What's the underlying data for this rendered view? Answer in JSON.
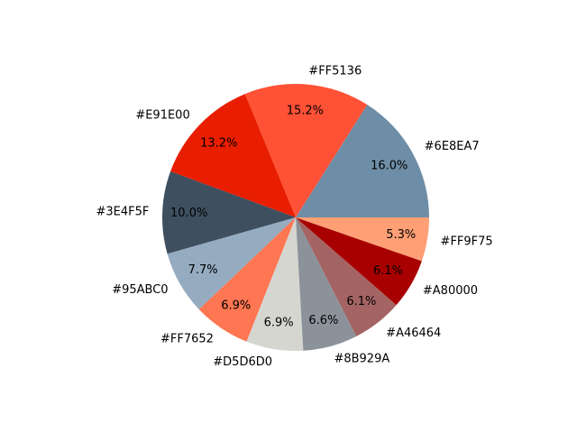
{
  "chart_data": {
    "type": "pie",
    "title": "",
    "labels": [
      "#6E8EA7",
      "#FF5136",
      "#E91E00",
      "#3E4F5F",
      "#95ABC0",
      "#FF7652",
      "#D5D6D0",
      "#8B929A",
      "#A46464",
      "#A80000",
      "#FF9F75"
    ],
    "values": [
      16.0,
      15.2,
      13.2,
      10.0,
      7.7,
      6.9,
      6.9,
      6.6,
      6.1,
      6.1,
      5.3
    ],
    "percent_labels": [
      "16.0%",
      "15.2%",
      "13.2%",
      "10.0%",
      "7.7%",
      "6.9%",
      "6.9%",
      "6.6%",
      "6.1%",
      "6.1%",
      "5.3%"
    ],
    "colors": [
      "#6E8EA7",
      "#FF5136",
      "#E91E00",
      "#3E4F5F",
      "#95ABC0",
      "#FF7652",
      "#D5D6D0",
      "#8B929A",
      "#A46464",
      "#A80000",
      "#FF9F75"
    ],
    "start_angle_deg": 0,
    "direction": "counterclockwise",
    "legend": "none"
  }
}
